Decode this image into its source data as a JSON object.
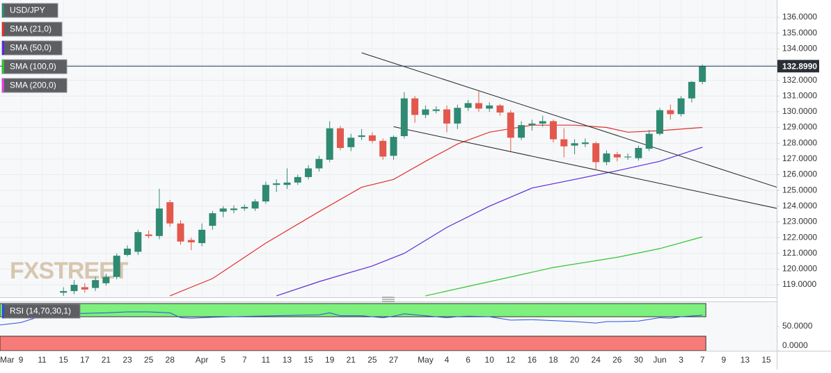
{
  "chart_data": {
    "type": "candlestick",
    "name": "USD/JPY",
    "up_color": "#2f8a72",
    "down_color": "#e2584d",
    "categories": [
      "Mar",
      null,
      "9",
      null,
      "11",
      null,
      "15",
      null,
      "17",
      null,
      "21",
      null,
      "23",
      null,
      "25",
      null,
      "28",
      null,
      null,
      "Apr",
      null,
      "5",
      null,
      "7",
      null,
      "11",
      null,
      "13",
      null,
      "15",
      null,
      "19",
      null,
      "21",
      null,
      "25",
      null,
      "27",
      null,
      null,
      "May",
      null,
      "4",
      null,
      "6",
      null,
      "10",
      null,
      "12",
      null,
      "16",
      null,
      "18",
      null,
      "20",
      null,
      "24",
      null,
      "26",
      null,
      "30",
      null,
      "Jun",
      null,
      "3",
      null,
      "7",
      null,
      "9",
      null,
      "13",
      null,
      "15",
      null
    ],
    "x": [
      6,
      7,
      8,
      9,
      10,
      11,
      12,
      13,
      14,
      15,
      16,
      17,
      18,
      19,
      20,
      21,
      22,
      23,
      24,
      25,
      26,
      27,
      28,
      29,
      30,
      31,
      32,
      33,
      34,
      35,
      36,
      37,
      38,
      39,
      40,
      41,
      42,
      43,
      44,
      45,
      46,
      47,
      48,
      49,
      50,
      51,
      52,
      53,
      54,
      55,
      56,
      57,
      58,
      59,
      60,
      61,
      62,
      63,
      64,
      65,
      66
    ],
    "open": [
      118.5,
      118.6,
      118.85,
      118.8,
      119.1,
      119.5,
      120.9,
      121.1,
      122.2,
      122.1,
      124.25,
      122.9,
      121.85,
      121.65,
      122.75,
      123.65,
      123.75,
      123.85,
      123.85,
      124.3,
      125.35,
      125.35,
      125.5,
      125.85,
      126.4,
      126.95,
      128.95,
      127.75,
      128.4,
      128.5,
      128.15,
      127.2,
      128.45,
      130.85,
      129.8,
      130.05,
      130.15,
      129.25,
      130.25,
      130.55,
      130.2,
      130.4,
      129.95,
      128.35,
      129.15,
      129.25,
      129.4,
      128.25,
      127.85,
      127.95,
      128.0,
      126.8,
      127.3,
      127.1,
      127.05,
      127.65,
      128.6,
      130.1,
      129.85,
      130.85,
      131.9
    ],
    "high": [
      118.85,
      119.3,
      119.1,
      119.5,
      119.7,
      121.0,
      121.5,
      122.5,
      122.45,
      125.1,
      124.4,
      123.1,
      122.0,
      122.9,
      123.7,
      124.0,
      124.05,
      124.1,
      124.45,
      125.55,
      125.7,
      126.4,
      126.0,
      126.6,
      127.2,
      129.4,
      129.1,
      128.6,
      128.9,
      128.7,
      128.3,
      128.5,
      131.25,
      131.0,
      130.4,
      130.35,
      130.4,
      130.45,
      130.75,
      131.3,
      130.6,
      130.5,
      130.1,
      129.4,
      129.5,
      129.75,
      129.5,
      128.95,
      128.25,
      128.3,
      128.1,
      127.55,
      127.45,
      127.35,
      127.85,
      128.85,
      130.25,
      130.45,
      131.0,
      131.95,
      133.0
    ],
    "low": [
      118.3,
      118.4,
      118.5,
      118.6,
      118.95,
      119.35,
      120.8,
      120.9,
      121.95,
      121.9,
      122.7,
      121.55,
      121.2,
      121.45,
      122.5,
      123.3,
      123.55,
      123.7,
      123.7,
      124.15,
      124.9,
      125.1,
      125.35,
      125.7,
      126.2,
      126.8,
      127.55,
      127.5,
      128.2,
      128.0,
      126.95,
      126.95,
      128.3,
      129.3,
      129.6,
      129.9,
      128.7,
      128.9,
      130.05,
      130.0,
      130.0,
      129.75,
      127.5,
      128.2,
      128.8,
      129.05,
      128.05,
      127.1,
      127.3,
      127.75,
      126.3,
      126.6,
      126.85,
      126.95,
      126.9,
      127.5,
      128.5,
      129.5,
      129.7,
      130.6,
      131.75
    ],
    "close": [
      118.6,
      119.0,
      118.7,
      119.3,
      119.5,
      120.85,
      121.3,
      122.35,
      122.1,
      123.85,
      122.9,
      121.75,
      121.7,
      122.5,
      123.55,
      123.85,
      123.85,
      123.95,
      124.3,
      125.35,
      125.45,
      125.5,
      125.85,
      126.4,
      127.0,
      128.95,
      127.7,
      128.35,
      128.5,
      128.15,
      127.15,
      128.4,
      130.85,
      129.8,
      130.15,
      130.15,
      129.25,
      130.25,
      130.55,
      130.2,
      130.4,
      129.95,
      128.35,
      129.15,
      129.25,
      129.4,
      128.25,
      127.8,
      128.0,
      128.05,
      126.8,
      127.35,
      127.1,
      127.15,
      127.7,
      128.6,
      130.1,
      129.85,
      130.85,
      131.9,
      132.899
    ],
    "overlays": [
      {
        "name": "SMA (21,0)",
        "color": "#e0302a",
        "x": [
          16,
          20,
          25,
          30,
          34,
          37,
          40,
          43,
          46,
          50,
          54,
          57,
          59,
          62,
          66
        ],
        "values": [
          118.3,
          119.4,
          121.65,
          123.65,
          125.2,
          125.7,
          126.85,
          127.95,
          128.7,
          129.15,
          129.15,
          129.0,
          128.7,
          128.8,
          129.0
        ]
      },
      {
        "name": "SMA (50,0)",
        "color": "#5a2ad8",
        "x": [
          26,
          30,
          35,
          38,
          42,
          46,
          50,
          54,
          58,
          62,
          66
        ],
        "values": [
          118.3,
          119.2,
          120.2,
          121.0,
          122.65,
          124.0,
          125.15,
          125.7,
          126.25,
          126.85,
          127.75
        ]
      },
      {
        "name": "SMA (100,0)",
        "color": "#2cc52c",
        "x": [
          40,
          46,
          52,
          58,
          62,
          66
        ],
        "values": [
          118.3,
          119.2,
          120.1,
          120.75,
          121.3,
          122.05
        ]
      },
      {
        "name": "SMA (200,0)",
        "color": "#e03ee0"
      }
    ],
    "trendlines": [
      {
        "x": [
          34,
          73
        ],
        "values": [
          133.75,
          125.2
        ]
      },
      {
        "x": [
          37,
          73
        ],
        "values": [
          129.05,
          123.86
        ]
      }
    ],
    "last_price": {
      "value": 132.899,
      "label": "132.8990"
    },
    "ylim": [
      118.207,
      137.104
    ],
    "yticks": [
      {
        "value": 136,
        "label": "136.0000"
      },
      {
        "value": 135,
        "label": "135.0000"
      },
      {
        "value": 134,
        "label": "134.0000"
      },
      {
        "value": 133,
        "label": "133.0000"
      },
      {
        "value": 132,
        "label": "132.0000"
      },
      {
        "value": 131,
        "label": "131.0000"
      },
      {
        "value": 130,
        "label": "130.0000"
      },
      {
        "value": 129,
        "label": "129.0000"
      },
      {
        "value": 128,
        "label": "128.0000"
      },
      {
        "value": 127,
        "label": "127.0000"
      },
      {
        "value": 126,
        "label": "126.0000"
      },
      {
        "value": 125,
        "label": "125.0000"
      },
      {
        "value": 124,
        "label": "124.0000"
      },
      {
        "value": 123,
        "label": "123.0000"
      },
      {
        "value": 122,
        "label": "122.0000"
      },
      {
        "value": 121,
        "label": "121.0000"
      },
      {
        "value": 120,
        "label": "120.0000"
      },
      {
        "value": 119,
        "label": "119.0000"
      }
    ],
    "grid": true,
    "watermark": "FXSTREET",
    "indicator": {
      "type": "line",
      "name": "RSI (14,70,30,1)",
      "color": "#2a4fe0",
      "x": [
        0,
        2,
        4,
        6,
        8,
        10,
        12,
        14,
        16,
        17,
        18,
        20,
        22,
        24,
        26,
        28,
        30,
        31,
        32,
        34,
        36,
        37,
        38,
        40,
        42,
        43,
        44,
        46,
        48,
        50,
        52,
        54,
        56,
        57,
        58,
        60,
        62,
        63,
        64,
        66
      ],
      "values": [
        53,
        58,
        72,
        76,
        77,
        78,
        80,
        80,
        78,
        68,
        67,
        69,
        70,
        71,
        72,
        73,
        74,
        78,
        72,
        72,
        68,
        71,
        76,
        72,
        68,
        70,
        71,
        70,
        63,
        64,
        62,
        60,
        57,
        60,
        60,
        61,
        68,
        67,
        70,
        73
      ],
      "ylim": [
        0,
        100
      ],
      "yticks": [
        {
          "value": 50,
          "label": "50.0000"
        },
        {
          "value": 0,
          "label": "0.0000"
        }
      ],
      "upper": 70,
      "lower": 30,
      "upper_color": "#7df07d",
      "lower_color": "#f77b78"
    }
  }
}
